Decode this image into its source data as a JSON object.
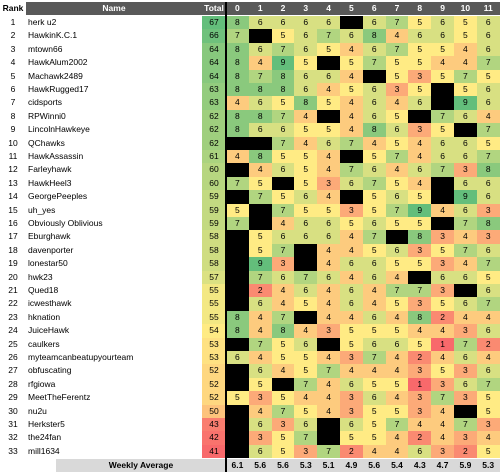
{
  "headers": {
    "rank": "Rank",
    "name": "Name",
    "total": "Total",
    "weeks": [
      "0",
      "1",
      "2",
      "3",
      "4",
      "5",
      "6",
      "7",
      "8",
      "9",
      "10",
      "11"
    ]
  },
  "footer": {
    "label": "Weekly Average",
    "values": [
      "6.1",
      "5.6",
      "5.6",
      "5.3",
      "5.1",
      "4.9",
      "5.6",
      "5.4",
      "4.3",
      "4.7",
      "5.9",
      "5.3"
    ]
  },
  "colors": {
    "header_bg": "#595959",
    "blank_week": "#000000",
    "high": "#63be7b",
    "mid": "#ffeb84",
    "low": "#f8696b"
  },
  "rows": [
    {
      "rank": "1",
      "name": "herk u2",
      "total": "67",
      "scores": [
        "8",
        "6",
        "6",
        "6",
        "6",
        "",
        "6",
        "7",
        "5",
        "6",
        "5",
        "6"
      ]
    },
    {
      "rank": "2",
      "name": "HawkinK.C.1",
      "total": "66",
      "scores": [
        "7",
        "",
        "5",
        "6",
        "7",
        "6",
        "8",
        "4",
        "6",
        "6",
        "5",
        "6"
      ]
    },
    {
      "rank": "3",
      "name": "mtown66",
      "total": "64",
      "scores": [
        "8",
        "6",
        "7",
        "6",
        "5",
        "4",
        "6",
        "7",
        "5",
        "5",
        "4",
        "6"
      ]
    },
    {
      "rank": "4",
      "name": "HawkAlum2002",
      "total": "64",
      "scores": [
        "8",
        "4",
        "9",
        "5",
        "",
        "5",
        "7",
        "5",
        "5",
        "4",
        "4",
        "7"
      ]
    },
    {
      "rank": "5",
      "name": "Machawk2489",
      "total": "64",
      "scores": [
        "8",
        "7",
        "8",
        "6",
        "6",
        "4",
        "",
        "5",
        "3",
        "5",
        "7",
        "5"
      ]
    },
    {
      "rank": "6",
      "name": "HawkRugged17",
      "total": "63",
      "scores": [
        "8",
        "8",
        "8",
        "6",
        "4",
        "5",
        "6",
        "3",
        "5",
        "",
        "5",
        "6"
      ]
    },
    {
      "rank": "7",
      "name": "cidsports",
      "total": "63",
      "scores": [
        "4",
        "6",
        "5",
        "8",
        "5",
        "4",
        "6",
        "4",
        "6",
        "",
        "9",
        "6"
      ]
    },
    {
      "rank": "8",
      "name": "RPWinni0",
      "total": "62",
      "scores": [
        "8",
        "8",
        "7",
        "4",
        "",
        "4",
        "6",
        "5",
        "",
        "7",
        "6",
        "4"
      ]
    },
    {
      "rank": "9",
      "name": "LincolnHawkeye",
      "total": "62",
      "scores": [
        "8",
        "6",
        "6",
        "5",
        "5",
        "4",
        "8",
        "6",
        "3",
        "5",
        "",
        "7"
      ]
    },
    {
      "rank": "10",
      "name": "QChawks",
      "total": "62",
      "scores": [
        "",
        "",
        "7",
        "4",
        "6",
        "7",
        "4",
        "5",
        "4",
        "6",
        "6",
        "5"
      ]
    },
    {
      "rank": "11",
      "name": "HawkAssassin",
      "total": "61",
      "scores": [
        "4",
        "8",
        "5",
        "5",
        "4",
        "",
        "5",
        "7",
        "4",
        "6",
        "6",
        "7"
      ]
    },
    {
      "rank": "12",
      "name": "Farleyhawk",
      "total": "60",
      "scores": [
        "",
        "4",
        "6",
        "5",
        "4",
        "7",
        "6",
        "4",
        "6",
        "7",
        "3",
        "8"
      ]
    },
    {
      "rank": "13",
      "name": "HawkHeel3",
      "total": "60",
      "scores": [
        "7",
        "5",
        "",
        "5",
        "3",
        "6",
        "7",
        "5",
        "4",
        "",
        "6",
        "6"
      ]
    },
    {
      "rank": "14",
      "name": "GeorgePeeples",
      "total": "59",
      "scores": [
        "",
        "7",
        "5",
        "6",
        "4",
        "",
        "5",
        "6",
        "5",
        "",
        "9",
        "6"
      ]
    },
    {
      "rank": "15",
      "name": "uh_yes",
      "total": "59",
      "scores": [
        "5",
        "",
        "7",
        "5",
        "5",
        "3",
        "5",
        "7",
        "9",
        "4",
        "6",
        "3"
      ]
    },
    {
      "rank": "16",
      "name": "Obviously Oblivious",
      "total": "59",
      "scores": [
        "7",
        "",
        "4",
        "6",
        "6",
        "5",
        "6",
        "5",
        "5",
        "",
        "7",
        "8"
      ]
    },
    {
      "rank": "17",
      "name": "Eburghawk",
      "total": "58",
      "scores": [
        "",
        "5",
        "6",
        "6",
        "6",
        "4",
        "7",
        "",
        "8",
        "3",
        "4",
        "3"
      ]
    },
    {
      "rank": "18",
      "name": "davenporter",
      "total": "58",
      "scores": [
        "",
        "5",
        "7",
        "",
        "4",
        "4",
        "5",
        "6",
        "3",
        "5",
        "7",
        "6"
      ]
    },
    {
      "rank": "19",
      "name": "lonestar50",
      "total": "58",
      "scores": [
        "",
        "9",
        "3",
        "",
        "4",
        "6",
        "6",
        "5",
        "5",
        "3",
        "4",
        "7"
      ]
    },
    {
      "rank": "20",
      "name": "hwk23",
      "total": "57",
      "scores": [
        "",
        "7",
        "6",
        "7",
        "6",
        "4",
        "6",
        "4",
        "",
        "6",
        "6",
        "5"
      ]
    },
    {
      "rank": "21",
      "name": "Qued18",
      "total": "55",
      "scores": [
        "",
        "2",
        "4",
        "6",
        "4",
        "6",
        "4",
        "7",
        "7",
        "3",
        "",
        "6"
      ]
    },
    {
      "rank": "22",
      "name": "icwesthawk",
      "total": "55",
      "scores": [
        "",
        "6",
        "4",
        "5",
        "4",
        "6",
        "4",
        "5",
        "3",
        "5",
        "6",
        "7"
      ]
    },
    {
      "rank": "23",
      "name": "hknation",
      "total": "55",
      "scores": [
        "8",
        "4",
        "7",
        "",
        "4",
        "4",
        "6",
        "4",
        "8",
        "2",
        "4",
        "4"
      ]
    },
    {
      "rank": "24",
      "name": "JuiceHawk",
      "total": "54",
      "scores": [
        "8",
        "4",
        "8",
        "4",
        "3",
        "5",
        "5",
        "5",
        "4",
        "4",
        "3",
        "6"
      ]
    },
    {
      "rank": "25",
      "name": "caulkers",
      "total": "53",
      "scores": [
        "",
        "7",
        "5",
        "6",
        "",
        "5",
        "6",
        "6",
        "5",
        "1",
        "7",
        "2"
      ]
    },
    {
      "rank": "26",
      "name": "myteamcanbeatupyourteam",
      "total": "53",
      "scores": [
        "6",
        "4",
        "5",
        "5",
        "4",
        "3",
        "7",
        "4",
        "2",
        "4",
        "6",
        "4"
      ]
    },
    {
      "rank": "27",
      "name": "obfuscating",
      "total": "52",
      "scores": [
        "",
        "6",
        "4",
        "5",
        "7",
        "4",
        "4",
        "4",
        "3",
        "5",
        "3",
        "6"
      ]
    },
    {
      "rank": "28",
      "name": "rfgiowa",
      "total": "52",
      "scores": [
        "",
        "5",
        "",
        "7",
        "4",
        "6",
        "5",
        "5",
        "1",
        "3",
        "6",
        "7"
      ]
    },
    {
      "rank": "29",
      "name": "MeetTheFerentz",
      "total": "52",
      "scores": [
        "5",
        "3",
        "5",
        "4",
        "4",
        "3",
        "6",
        "4",
        "3",
        "7",
        "3",
        "5"
      ]
    },
    {
      "rank": "30",
      "name": "nu2u",
      "total": "50",
      "scores": [
        "",
        "4",
        "7",
        "5",
        "4",
        "3",
        "5",
        "5",
        "3",
        "4",
        "",
        "5"
      ]
    },
    {
      "rank": "31",
      "name": "Herkster5",
      "total": "43",
      "scores": [
        "",
        "6",
        "3",
        "6",
        "",
        "6",
        "5",
        "7",
        "4",
        "4",
        "7",
        "3"
      ]
    },
    {
      "rank": "32",
      "name": "the24fan",
      "total": "42",
      "scores": [
        "",
        "3",
        "5",
        "7",
        "",
        "5",
        "5",
        "4",
        "2",
        "4",
        "3",
        "4"
      ]
    },
    {
      "rank": "33",
      "name": "mill1634",
      "total": "41",
      "scores": [
        "",
        "6",
        "5",
        "3",
        "7",
        "2",
        "4",
        "4",
        "6",
        "3",
        "2",
        "5"
      ]
    }
  ]
}
